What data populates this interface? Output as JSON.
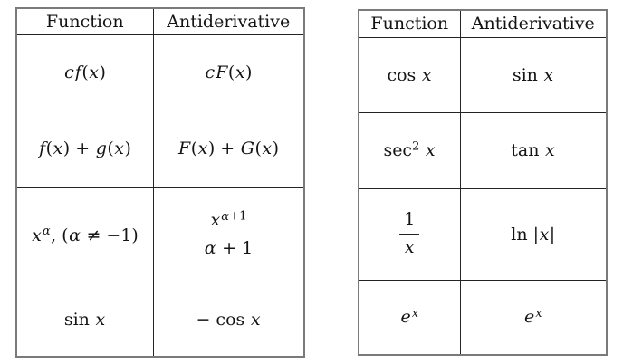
{
  "style": {
    "text_color": "#141414",
    "inner_border_color": "#242424",
    "outer_border_color": "#7a7a7a",
    "background": "#ffffff"
  },
  "left_table": {
    "headers": [
      "Function",
      "Antiderivative"
    ],
    "rows": [
      {
        "function": "cf(x)",
        "antiderivative": "cF(x)"
      },
      {
        "function": "f(x) + g(x)",
        "antiderivative": "F(x) + G(x)"
      },
      {
        "function": "x^{α}, (α ≠ −1)",
        "antiderivative": "\\frac{x^{α+1}}{α + 1}"
      },
      {
        "function": "sin x",
        "antiderivative": "− cos x"
      }
    ]
  },
  "right_table": {
    "headers": [
      "Function",
      "Antiderivative"
    ],
    "rows": [
      {
        "function": "cos x",
        "antiderivative": "sin x"
      },
      {
        "function": "sec^{2} x",
        "antiderivative": "tan x"
      },
      {
        "function": "\\frac{1}{x}",
        "antiderivative": "ln |x|"
      },
      {
        "function": "e^{x}",
        "antiderivative": "e^{x}"
      }
    ]
  }
}
